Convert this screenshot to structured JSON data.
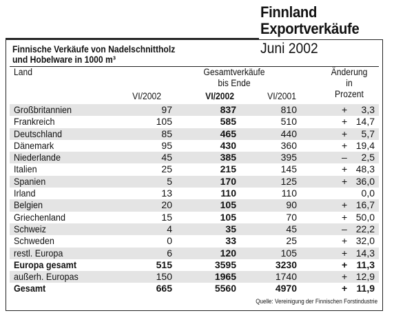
{
  "header": {
    "title": "Finnland",
    "subtitle": "Exportverkäufe",
    "month": "Juni 2002"
  },
  "caption": {
    "line1": "Finnische Verkäufe von Nadelschnittholz",
    "line2": "und Hobelware in 1000 m³"
  },
  "columns": {
    "land": "Land",
    "gesamt_line1": "Gesamtverkäufe",
    "gesamt_line2": "bis Ende",
    "v1": "VI/2002",
    "v2": "VI/2002",
    "v3": "VI/2001",
    "chg_line1": "Änderung",
    "chg_line2": "in",
    "chg_line3": "Prozent"
  },
  "rows": [
    {
      "land": "Großbritannien",
      "v1": "97",
      "v2": "837",
      "v3": "810",
      "sign": "+",
      "chg": "3,3"
    },
    {
      "land": "Frankreich",
      "v1": "105",
      "v2": "585",
      "v3": "510",
      "sign": "+",
      "chg": "14,7"
    },
    {
      "land": "Deutschland",
      "v1": "85",
      "v2": "465",
      "v3": "440",
      "sign": "+",
      "chg": "5,7"
    },
    {
      "land": "Dänemark",
      "v1": "95",
      "v2": "430",
      "v3": "360",
      "sign": "+",
      "chg": "19,4"
    },
    {
      "land": "Niederlande",
      "v1": "45",
      "v2": "385",
      "v3": "395",
      "sign": "–",
      "chg": "2,5"
    },
    {
      "land": "Italien",
      "v1": "25",
      "v2": "215",
      "v3": "145",
      "sign": "+",
      "chg": "48,3"
    },
    {
      "land": "Spanien",
      "v1": "5",
      "v2": "170",
      "v3": "125",
      "sign": "+",
      "chg": "36,0"
    },
    {
      "land": "Irland",
      "v1": "13",
      "v2": "110",
      "v3": "110",
      "sign": "",
      "chg": "0,0"
    },
    {
      "land": "Belgien",
      "v1": "20",
      "v2": "105",
      "v3": "90",
      "sign": "+",
      "chg": "16,7"
    },
    {
      "land": "Griechenland",
      "v1": "15",
      "v2": "105",
      "v3": "70",
      "sign": "+",
      "chg": "50,0"
    },
    {
      "land": "Schweiz",
      "v1": "4",
      "v2": "35",
      "v3": "45",
      "sign": "–",
      "chg": "22,2"
    },
    {
      "land": "Schweden",
      "v1": "0",
      "v2": "33",
      "v3": "25",
      "sign": "+",
      "chg": "32,0"
    },
    {
      "land": "restl. Europa",
      "v1": "6",
      "v2": "120",
      "v3": "105",
      "sign": "+",
      "chg": "14,3"
    },
    {
      "land": "Europa gesamt",
      "v1": "515",
      "v2": "3595",
      "v3": "3230",
      "sign": "+",
      "chg": "11,3"
    },
    {
      "land": "außerh. Europas",
      "v1": "150",
      "v2": "1965",
      "v3": "1740",
      "sign": "+",
      "chg": "12,9"
    },
    {
      "land": "Gesamt",
      "v1": "665",
      "v2": "5560",
      "v3": "4970",
      "sign": "+",
      "chg": "11,9"
    }
  ],
  "source": "Quelle: Vereinigung der Finnischen Forstindustrie"
}
